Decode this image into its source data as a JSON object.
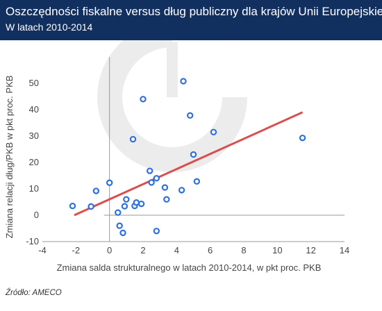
{
  "header": {
    "title": "Oszczędności fiskalne versus dług publiczny dla krajów Unii Europejskiej",
    "subtitle": "W latach 2010-2014"
  },
  "source": "Źródło: AMECO",
  "colors": {
    "header_bg": "#12305f",
    "point_stroke": "#2f6fdb",
    "trend_line": "#d94f4f",
    "watermark": "#ececec"
  },
  "chart_data": {
    "type": "scatter",
    "xlabel": "Zmiana salda strukturalnego w latach 2010-2014, w pkt proc. PKB",
    "ylabel": "Zmiana relacji dług/PKB w pkt proc. PKB",
    "xlim": [
      -4,
      14
    ],
    "ylim": [
      -10,
      60
    ],
    "xticks": [
      -4,
      -2,
      0,
      2,
      4,
      6,
      8,
      10,
      12,
      14
    ],
    "yticks": [
      -10,
      0,
      10,
      20,
      30,
      40,
      50
    ],
    "grid": false,
    "points": [
      {
        "x": -2.2,
        "y": 3.5
      },
      {
        "x": -1.1,
        "y": 3.3
      },
      {
        "x": -0.8,
        "y": 9.2
      },
      {
        "x": 0.0,
        "y": 12.3
      },
      {
        "x": 0.5,
        "y": 1.0
      },
      {
        "x": 0.6,
        "y": -4.0
      },
      {
        "x": 0.8,
        "y": -6.7
      },
      {
        "x": 0.9,
        "y": 3.4
      },
      {
        "x": 1.0,
        "y": 6.0
      },
      {
        "x": 1.4,
        "y": 28.8
      },
      {
        "x": 1.5,
        "y": 3.5
      },
      {
        "x": 1.6,
        "y": 4.8
      },
      {
        "x": 1.9,
        "y": 4.3
      },
      {
        "x": 2.0,
        "y": 44.0
      },
      {
        "x": 2.4,
        "y": 16.8
      },
      {
        "x": 2.5,
        "y": 12.4
      },
      {
        "x": 2.8,
        "y": 14.0
      },
      {
        "x": 2.8,
        "y": -6.0
      },
      {
        "x": 3.3,
        "y": 10.5
      },
      {
        "x": 3.4,
        "y": 6.0
      },
      {
        "x": 4.3,
        "y": 9.5
      },
      {
        "x": 4.4,
        "y": 50.8
      },
      {
        "x": 4.8,
        "y": 37.8
      },
      {
        "x": 5.0,
        "y": 23.0
      },
      {
        "x": 5.2,
        "y": 12.8
      },
      {
        "x": 6.2,
        "y": 31.5
      },
      {
        "x": 11.5,
        "y": 29.3
      }
    ],
    "trendline": {
      "x": [
        -2.1,
        11.5
      ],
      "y": [
        0,
        39
      ]
    }
  }
}
